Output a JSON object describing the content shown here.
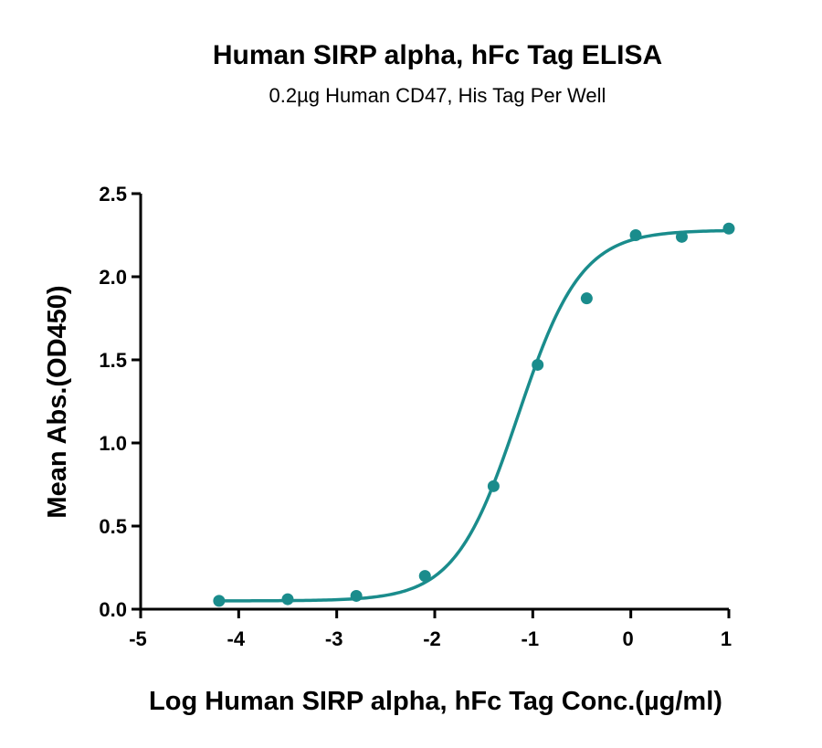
{
  "chart_data": {
    "type": "scatter",
    "title": "Human SIRP alpha, hFc Tag ELISA",
    "subtitle": "0.2µg Human CD47, His Tag Per Well",
    "xlabel": "Log Human SIRP alpha, hFc Tag Conc.(µg/ml)",
    "ylabel": "Mean Abs.(OD450)",
    "xlim": [
      -5,
      1
    ],
    "ylim": [
      0,
      2.5
    ],
    "xticks": [
      -5,
      -4,
      -3,
      -2,
      -1,
      0,
      1
    ],
    "xtick_labels": [
      "-5",
      "-4",
      "-3",
      "-2",
      "-1",
      "0",
      "1"
    ],
    "yticks": [
      0,
      0.5,
      1.0,
      1.5,
      2.0,
      2.5
    ],
    "ytick_labels": [
      "0.0",
      "0.5",
      "1.0",
      "1.5",
      "2.0",
      "2.5"
    ],
    "grid": false,
    "color": "#1a8c8c",
    "series": [
      {
        "points": [
          {
            "x": -4.2,
            "y": 0.05
          },
          {
            "x": -3.5,
            "y": 0.06
          },
          {
            "x": -2.8,
            "y": 0.08
          },
          {
            "x": -2.1,
            "y": 0.2
          },
          {
            "x": -1.4,
            "y": 0.74
          },
          {
            "x": -0.95,
            "y": 1.47
          },
          {
            "x": -0.45,
            "y": 1.87
          },
          {
            "x": 0.05,
            "y": 2.25
          },
          {
            "x": 0.52,
            "y": 2.24
          },
          {
            "x": 1.0,
            "y": 2.29
          }
        ],
        "fit": {
          "model": "4PL",
          "bottom": 0.05,
          "top": 2.28,
          "log_ec50": -1.15,
          "hill_slope": 1.35,
          "x_start": -4.2,
          "x_end": 1.0
        }
      }
    ]
  }
}
